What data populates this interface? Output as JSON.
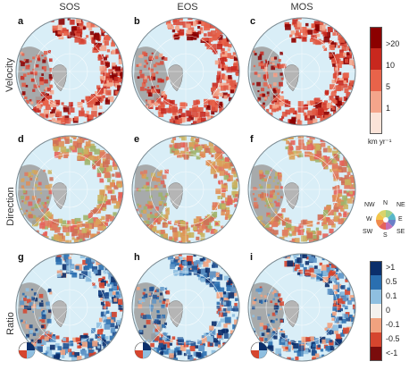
{
  "columns": [
    "SOS",
    "EOS",
    "MOS"
  ],
  "rows": [
    "Velocity",
    "Direction",
    "Ratio"
  ],
  "panels": [
    "a",
    "b",
    "c",
    "d",
    "e",
    "f",
    "g",
    "h",
    "i"
  ],
  "velocity_legend": {
    "ticks": [
      ">20",
      "10",
      "5",
      "1"
    ],
    "unit": "km yr⁻¹",
    "colors": [
      "#8b0000",
      "#c8281e",
      "#e8634a",
      "#f4a58b",
      "#fbe3d8"
    ]
  },
  "direction_legend": {
    "labels": {
      "nw": "NW",
      "n": "N",
      "ne": "NE",
      "w": "W",
      "e": "E",
      "sw": "SW",
      "s": "S",
      "se": "SE"
    },
    "colors": [
      "#f3c54a",
      "#9fd08a",
      "#58b7c9",
      "#6a7fc8",
      "#c46fb6",
      "#e5625a",
      "#f08a4b",
      "#f3c54a"
    ]
  },
  "ratio_legend": {
    "ticks": [
      ">1",
      "0.5",
      "0.1",
      "0",
      "-0.1",
      "-0.5",
      "<-1"
    ],
    "colors": [
      "#0b2f6b",
      "#2a6fb0",
      "#8fbfe0",
      "#f4f1ee",
      "#f1a27f",
      "#d6452e",
      "#7a0c0c"
    ]
  },
  "map_colors": {
    "ocean": "#d9eef7",
    "land_north_america": "#9d9d9d",
    "greenland": "#b5b5b5",
    "velocity": "#e05a44",
    "direction": "#e07a5f",
    "ratio": "#2f6ea6"
  }
}
